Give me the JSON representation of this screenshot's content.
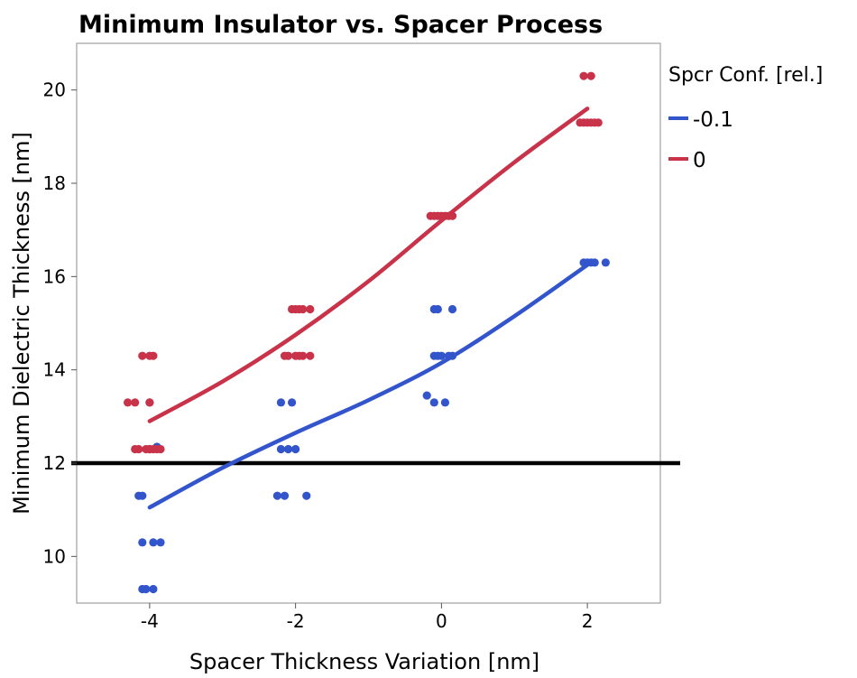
{
  "chart_data": {
    "type": "scatter",
    "title": "Minimum Insulator vs. Spacer Process",
    "xlabel": "Spacer Thickness Variation [nm]",
    "ylabel": "Minimum Dielectric Thickness [nm]",
    "xlim": [
      -5,
      3
    ],
    "ylim": [
      9,
      21
    ],
    "x_ticks": [
      "-4",
      "-2",
      "0",
      "2"
    ],
    "y_ticks": [
      "10",
      "12",
      "14",
      "16",
      "18",
      "20"
    ],
    "grid": false,
    "legend_position": "right",
    "legend_title": "Spcr Conf. [rel.]",
    "reference_line": {
      "y": 12,
      "color": "#000000"
    },
    "series": [
      {
        "name": "-0.1",
        "color": "#3355cc",
        "points": [
          [
            -4.1,
            9.3
          ],
          [
            -4.05,
            9.3
          ],
          [
            -3.95,
            9.3
          ],
          [
            -4.1,
            10.3
          ],
          [
            -3.95,
            10.3
          ],
          [
            -3.85,
            10.3
          ],
          [
            -4.15,
            11.3
          ],
          [
            -4.1,
            11.3
          ],
          [
            -4.0,
            12.3
          ],
          [
            -3.9,
            12.35
          ],
          [
            -4.0,
            13.3
          ],
          [
            -2.25,
            11.3
          ],
          [
            -2.15,
            11.3
          ],
          [
            -1.85,
            11.3
          ],
          [
            -2.2,
            12.3
          ],
          [
            -2.1,
            12.3
          ],
          [
            -2.0,
            12.3
          ],
          [
            -2.2,
            13.3
          ],
          [
            -2.05,
            13.3
          ],
          [
            -0.2,
            13.45
          ],
          [
            -0.1,
            13.3
          ],
          [
            0.05,
            13.3
          ],
          [
            -0.1,
            14.3
          ],
          [
            -0.05,
            14.3
          ],
          [
            0.0,
            14.3
          ],
          [
            0.1,
            14.3
          ],
          [
            0.15,
            14.3
          ],
          [
            -0.1,
            15.3
          ],
          [
            -0.05,
            15.3
          ],
          [
            0.15,
            15.3
          ],
          [
            1.95,
            16.3
          ],
          [
            2.0,
            16.3
          ],
          [
            2.05,
            16.3
          ],
          [
            2.1,
            16.3
          ],
          [
            2.25,
            16.3
          ]
        ],
        "fit": [
          [
            -4.0,
            11.05
          ],
          [
            -3.0,
            11.9
          ],
          [
            -2.0,
            12.65
          ],
          [
            -1.0,
            13.35
          ],
          [
            0.0,
            14.15
          ],
          [
            1.0,
            15.15
          ],
          [
            2.0,
            16.25
          ]
        ]
      },
      {
        "name": "0",
        "color": "#c8334a",
        "points": [
          [
            -4.2,
            12.3
          ],
          [
            -4.15,
            12.3
          ],
          [
            -4.05,
            12.3
          ],
          [
            -4.0,
            12.3
          ],
          [
            -3.95,
            12.3
          ],
          [
            -3.9,
            12.3
          ],
          [
            -3.85,
            12.3
          ],
          [
            -4.3,
            13.3
          ],
          [
            -4.2,
            13.3
          ],
          [
            -4.0,
            13.3
          ],
          [
            -4.1,
            14.3
          ],
          [
            -4.0,
            14.3
          ],
          [
            -3.95,
            14.3
          ],
          [
            -2.15,
            14.3
          ],
          [
            -2.1,
            14.3
          ],
          [
            -2.0,
            14.3
          ],
          [
            -1.95,
            14.3
          ],
          [
            -1.9,
            14.3
          ],
          [
            -1.8,
            14.3
          ],
          [
            -2.05,
            15.3
          ],
          [
            -2.0,
            15.3
          ],
          [
            -1.95,
            15.3
          ],
          [
            -1.9,
            15.3
          ],
          [
            -1.8,
            15.3
          ],
          [
            -0.15,
            17.3
          ],
          [
            -0.1,
            17.3
          ],
          [
            -0.05,
            17.3
          ],
          [
            0.0,
            17.3
          ],
          [
            0.05,
            17.3
          ],
          [
            0.1,
            17.3
          ],
          [
            0.15,
            17.3
          ],
          [
            1.9,
            19.3
          ],
          [
            1.95,
            19.3
          ],
          [
            2.0,
            19.3
          ],
          [
            2.05,
            19.3
          ],
          [
            2.1,
            19.3
          ],
          [
            2.15,
            19.3
          ],
          [
            1.95,
            20.3
          ],
          [
            2.05,
            20.3
          ]
        ],
        "fit": [
          [
            -4.0,
            12.9
          ],
          [
            -3.0,
            13.75
          ],
          [
            -2.0,
            14.75
          ],
          [
            -1.0,
            15.9
          ],
          [
            0.0,
            17.2
          ],
          [
            1.0,
            18.45
          ],
          [
            2.0,
            19.6
          ]
        ]
      }
    ]
  }
}
